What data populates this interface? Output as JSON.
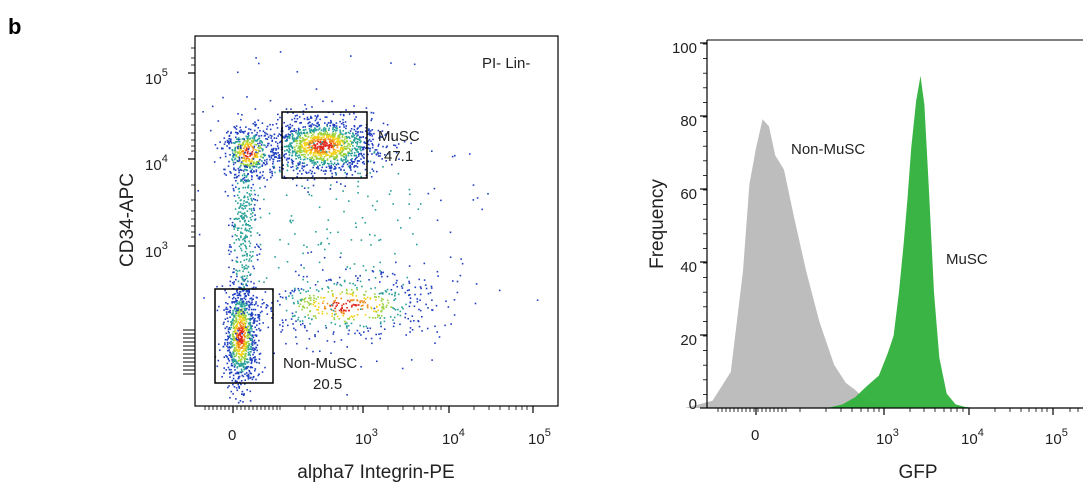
{
  "panel_label": "b",
  "chart_data": [
    {
      "type": "scatter",
      "title": "",
      "annotation": "PI- Lin-",
      "xlabel": "alpha7 Integrin-PE",
      "ylabel": "CD34-APC",
      "x_scale": "biexponential",
      "y_scale": "biexponential",
      "x_ticks": [
        {
          "base": "0",
          "exp": ""
        },
        {
          "base": "10",
          "exp": "3"
        },
        {
          "base": "10",
          "exp": "4"
        },
        {
          "base": "10",
          "exp": "5"
        }
      ],
      "y_ticks": [
        {
          "base": "10",
          "exp": "3"
        },
        {
          "base": "10",
          "exp": "4"
        },
        {
          "base": "10",
          "exp": "5"
        }
      ],
      "density_colors": [
        "#1f3fbf",
        "#2aa198",
        "#9bd13c",
        "#f2d21b",
        "#f08a1b",
        "#e02a1f"
      ],
      "gates": [
        {
          "name": "MuSC",
          "value": "47.1"
        },
        {
          "name": "Non-MuSC",
          "value": "20.5"
        }
      ]
    },
    {
      "type": "area",
      "title": "",
      "xlabel": "GFP",
      "ylabel": "Frequency",
      "x_scale": "biexponential",
      "ylim": [
        0,
        100
      ],
      "y_ticks": [
        "0",
        "20",
        "40",
        "60",
        "80",
        "100"
      ],
      "x_ticks": [
        {
          "base": "0",
          "exp": ""
        },
        {
          "base": "10",
          "exp": "3"
        },
        {
          "base": "10",
          "exp": "4"
        },
        {
          "base": "10",
          "exp": "5"
        }
      ],
      "series": [
        {
          "name": "Non-MuSC",
          "color": "#bdbdbd",
          "points": [
            [
              -300,
              0
            ],
            [
              -150,
              2
            ],
            [
              -80,
              10
            ],
            [
              -40,
              38
            ],
            [
              -20,
              62
            ],
            [
              0,
              72
            ],
            [
              20,
              80
            ],
            [
              40,
              78
            ],
            [
              60,
              70
            ],
            [
              90,
              66
            ],
            [
              130,
              52
            ],
            [
              180,
              38
            ],
            [
              250,
              24
            ],
            [
              350,
              12
            ],
            [
              450,
              7
            ],
            [
              550,
              5
            ],
            [
              650,
              3
            ],
            [
              800,
              1.5
            ],
            [
              1000,
              0.5
            ],
            [
              1300,
              0
            ]
          ]
        },
        {
          "name": "MuSC",
          "color": "#2fb03a",
          "points": [
            [
              300,
              0
            ],
            [
              420,
              1
            ],
            [
              550,
              3
            ],
            [
              700,
              6
            ],
            [
              900,
              9
            ],
            [
              1100,
              15
            ],
            [
              1300,
              20
            ],
            [
              1500,
              32
            ],
            [
              1700,
              45
            ],
            [
              1900,
              58
            ],
            [
              2100,
              72
            ],
            [
              2400,
              85
            ],
            [
              2700,
              92
            ],
            [
              3000,
              84
            ],
            [
              3400,
              60
            ],
            [
              3900,
              32
            ],
            [
              4500,
              14
            ],
            [
              5500,
              4
            ],
            [
              7000,
              1
            ],
            [
              9000,
              0.3
            ],
            [
              12000,
              0
            ]
          ]
        }
      ]
    }
  ]
}
